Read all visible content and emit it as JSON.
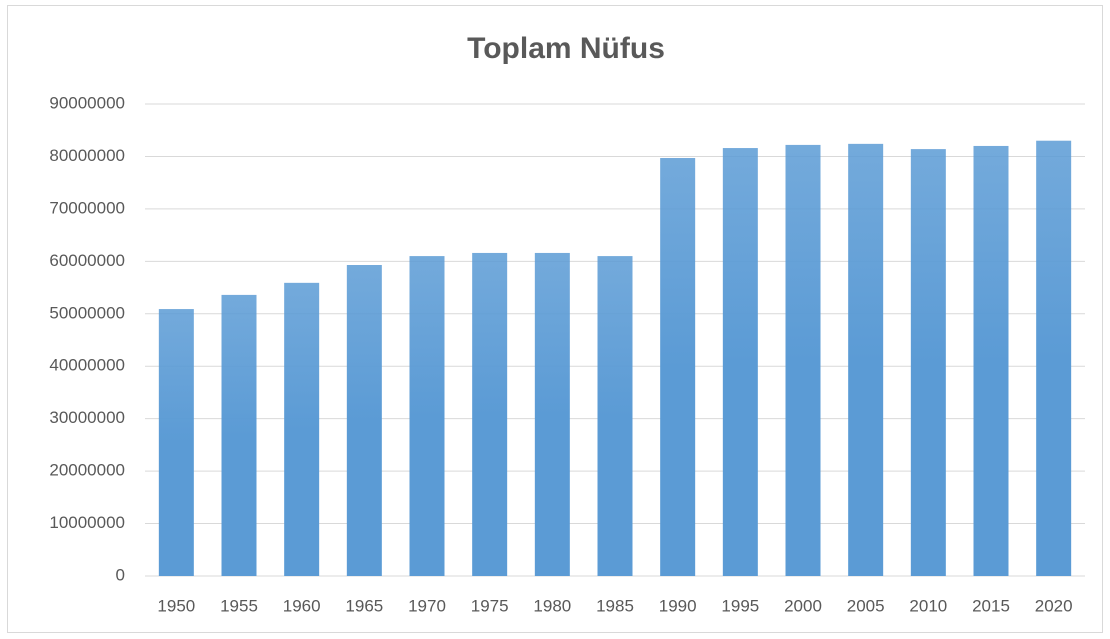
{
  "chart_data": {
    "type": "bar",
    "title": "Toplam Nüfus",
    "categories": [
      "1950",
      "1955",
      "1960",
      "1965",
      "1970",
      "1975",
      "1980",
      "1985",
      "1990",
      "1995",
      "2000",
      "2005",
      "2010",
      "2015",
      "2020"
    ],
    "values": [
      50900000,
      53600000,
      55900000,
      59300000,
      61000000,
      61600000,
      61600000,
      61000000,
      79700000,
      81600000,
      82200000,
      82400000,
      81400000,
      82000000,
      83000000
    ],
    "color": "#5b9bd5",
    "ylim": [
      0,
      90000000
    ],
    "yticks": [
      0,
      10000000,
      20000000,
      30000000,
      40000000,
      50000000,
      60000000,
      70000000,
      80000000,
      90000000
    ],
    "grid": true
  }
}
